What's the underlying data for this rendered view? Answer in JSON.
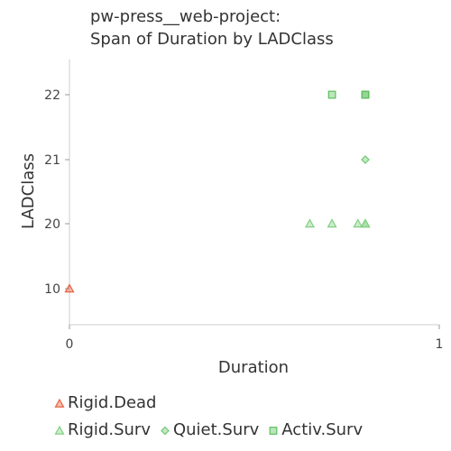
{
  "chart_data": {
    "type": "scatter",
    "title_lines": [
      "pw-press__web-project:",
      "Span of Duration by LADClass"
    ],
    "xlabel": "Duration",
    "ylabel": "LADClass",
    "xlim": [
      0,
      1
    ],
    "x_ticks": [
      "0",
      "1"
    ],
    "y_ticks": [
      "10",
      "20",
      "21",
      "22"
    ],
    "y_categories": [
      "10",
      "20",
      "21",
      "22"
    ],
    "grid": false,
    "legend_position": "bottom",
    "series": [
      {
        "name": "Rigid.Dead",
        "marker": "triangle",
        "color": "#e8603c",
        "points": [
          {
            "x": 0.0,
            "y": "10"
          }
        ]
      },
      {
        "name": "Rigid.Surv",
        "marker": "triangle",
        "color": "#7fcf7f",
        "points": [
          {
            "x": 0.65,
            "y": "20"
          },
          {
            "x": 0.71,
            "y": "20"
          },
          {
            "x": 0.78,
            "y": "20"
          },
          {
            "x": 0.8,
            "y": "20"
          },
          {
            "x": 0.8,
            "y": "20"
          }
        ]
      },
      {
        "name": "Quiet.Surv",
        "marker": "diamond",
        "color": "#6fc86f",
        "points": [
          {
            "x": 0.8,
            "y": "21"
          }
        ]
      },
      {
        "name": "Activ.Surv",
        "marker": "square",
        "color": "#5bbf5b",
        "points": [
          {
            "x": 0.71,
            "y": "22"
          },
          {
            "x": 0.8,
            "y": "22"
          },
          {
            "x": 0.8,
            "y": "22"
          }
        ]
      }
    ],
    "legend_rows": [
      [
        "Rigid.Dead"
      ],
      [
        "Rigid.Surv",
        "Quiet.Surv",
        "Activ.Surv"
      ]
    ]
  }
}
